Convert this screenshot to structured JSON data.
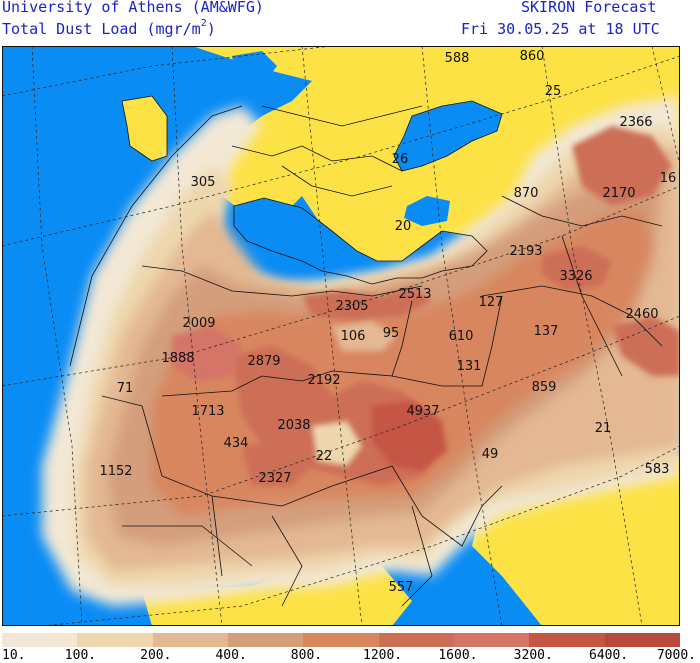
{
  "header": {
    "institution": "University of Athens (AM&WFG)",
    "field": "Total Dust Load (mgr/m",
    "field_sup": "2",
    "field_end": ")",
    "model": "SKIRON Forecast",
    "valid_time": "Fri 30.05.25 at 18 UTC"
  },
  "colors": {
    "sea": "#0a8cf5",
    "land_no_dust": "#fde246",
    "title_text": "#1b23c8",
    "borders": "#111111"
  },
  "legend": {
    "colors": [
      "#f2e8d5",
      "#eed7ad",
      "#e3b893",
      "#d49e7b",
      "#d8865e",
      "#cd6e56",
      "#d47567",
      "#c55545",
      "#b84a3b"
    ],
    "ticks": [
      "10.",
      "100.",
      "200.",
      "400.",
      "800.",
      "1200.",
      "1600.",
      "3200.",
      "6400.",
      "7000."
    ]
  },
  "map_values": [
    {
      "text": "588"
    },
    {
      "text": "860"
    },
    {
      "text": "25"
    },
    {
      "text": "2366"
    },
    {
      "text": "305"
    },
    {
      "text": "26"
    },
    {
      "text": "870"
    },
    {
      "text": "2170"
    },
    {
      "text": "16"
    },
    {
      "text": "20"
    },
    {
      "text": "2193"
    },
    {
      "text": "3326"
    },
    {
      "text": "2305"
    },
    {
      "text": "2513"
    },
    {
      "text": "127"
    },
    {
      "text": "2009"
    },
    {
      "text": "106"
    },
    {
      "text": "95"
    },
    {
      "text": "610"
    },
    {
      "text": "137"
    },
    {
      "text": "2460"
    },
    {
      "text": "1888"
    },
    {
      "text": "2879"
    },
    {
      "text": "131"
    },
    {
      "text": "2192"
    },
    {
      "text": "71"
    },
    {
      "text": "859"
    },
    {
      "text": "1713"
    },
    {
      "text": "4937"
    },
    {
      "text": "2038"
    },
    {
      "text": "21"
    },
    {
      "text": "434"
    },
    {
      "text": "22"
    },
    {
      "text": "49"
    },
    {
      "text": "1152"
    },
    {
      "text": "2327"
    },
    {
      "text": "583"
    },
    {
      "text": "557"
    }
  ]
}
